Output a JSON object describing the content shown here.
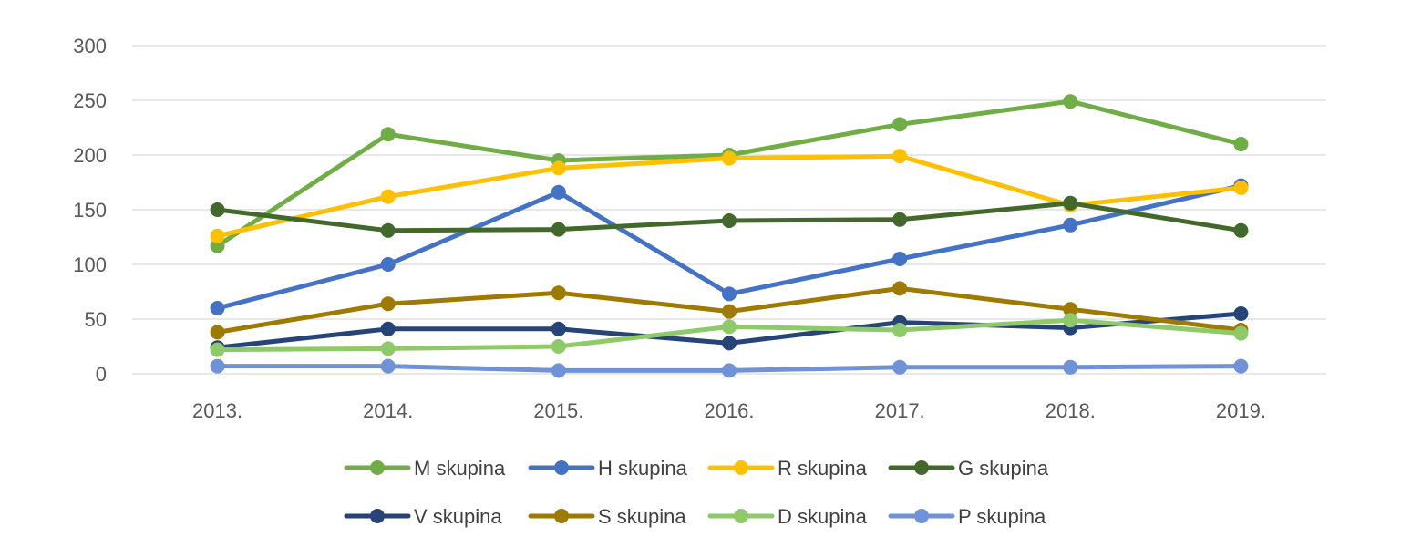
{
  "chart_data": {
    "type": "line",
    "title": "",
    "xlabel": "",
    "ylabel": "",
    "categories": [
      "2013.",
      "2014.",
      "2015.",
      "2016.",
      "2017.",
      "2018.",
      "2019."
    ],
    "ylim": [
      0,
      300
    ],
    "yticks": [
      0,
      50,
      100,
      150,
      200,
      250,
      300
    ],
    "grid": true,
    "legend_position": "bottom",
    "series": [
      {
        "name": "M skupina",
        "color": "#70AD47",
        "values": [
          117,
          219,
          195,
          200,
          228,
          249,
          210
        ]
      },
      {
        "name": "H skupina",
        "color": "#4472C4",
        "values": [
          60,
          100,
          166,
          73,
          105,
          136,
          172
        ]
      },
      {
        "name": "R skupina",
        "color": "#FFC000",
        "values": [
          126,
          162,
          188,
          197,
          199,
          154,
          170
        ]
      },
      {
        "name": "G skupina",
        "color": "#43682B",
        "values": [
          150,
          131,
          132,
          140,
          141,
          156,
          131
        ]
      },
      {
        "name": "V skupina",
        "color": "#264478",
        "values": [
          24,
          41,
          41,
          28,
          47,
          42,
          55
        ]
      },
      {
        "name": "S skupina",
        "color": "#9E7A00",
        "values": [
          38,
          64,
          74,
          57,
          78,
          59,
          40
        ]
      },
      {
        "name": "D skupina",
        "color": "#8FCA6A",
        "values": [
          22,
          23,
          25,
          43,
          40,
          49,
          37
        ]
      },
      {
        "name": "P skupina",
        "color": "#6F93D6",
        "values": [
          7,
          7,
          3,
          3,
          6,
          6,
          7
        ]
      }
    ]
  }
}
